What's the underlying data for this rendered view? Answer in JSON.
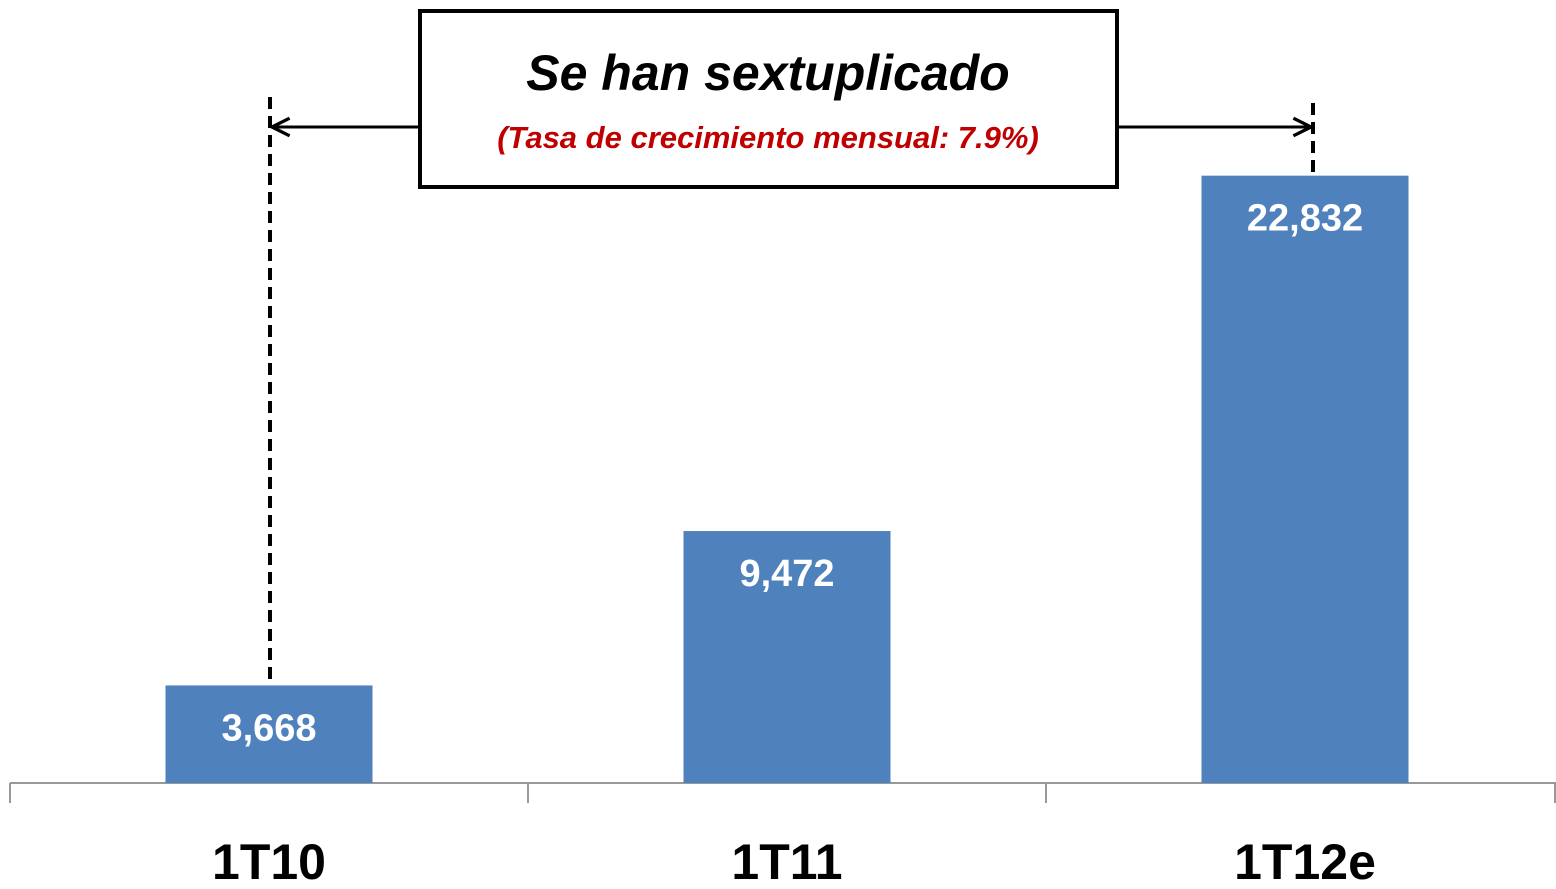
{
  "chart_data": {
    "type": "bar",
    "annotation": {
      "title": "Se han sextuplicado",
      "subtitle": "(Tasa de crecimiento mensual: 7.9%)"
    },
    "categories": [
      "1T10",
      "1T11",
      "1T12e"
    ],
    "values": [
      3668,
      9472,
      22832
    ],
    "value_labels": [
      "3,668",
      "9,472",
      "22,832"
    ],
    "color": "#4f81bd",
    "ylim": [
      0,
      25000
    ]
  }
}
